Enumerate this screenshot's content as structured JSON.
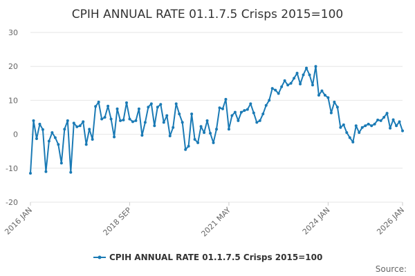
{
  "chart_data": {
    "type": "line",
    "title": "CPIH ANNUAL RATE 01.1.7.5 Crisps 2015=100",
    "xlabel": "",
    "ylabel": "",
    "ylim": [
      -20,
      30
    ],
    "yticks": [
      -20,
      -10,
      0,
      10,
      20,
      30
    ],
    "grid": true,
    "legend_position": "bottom-center",
    "xticks": [
      {
        "label": "2016 JAN",
        "index": 0
      },
      {
        "label": "2018 SEP",
        "index": 32
      },
      {
        "label": "2021 MAY",
        "index": 64
      },
      {
        "label": "2024 JAN",
        "index": 96
      },
      {
        "label": "2026 JAN",
        "index": 120
      }
    ],
    "series": [
      {
        "name": "CPIH ANNUAL RATE 01.1.7.5 Crisps 2015=100",
        "color": "#1a7ab5",
        "values": [
          -11.5,
          4.0,
          -1.3,
          3.0,
          1.4,
          -11.0,
          -2.0,
          0.5,
          -1.0,
          -3.0,
          -8.5,
          1.5,
          4.0,
          -11.2,
          3.3,
          2.2,
          2.5,
          3.7,
          -3.0,
          1.5,
          -1.5,
          8.2,
          9.5,
          4.5,
          5.0,
          8.3,
          4.5,
          -0.8,
          7.5,
          4.0,
          4.2,
          9.3,
          4.5,
          3.7,
          4.0,
          7.5,
          -0.3,
          3.5,
          8.0,
          9.0,
          2.5,
          8.0,
          8.8,
          3.5,
          5.5,
          -0.5,
          2.0,
          9.0,
          6.0,
          3.5,
          -4.5,
          -3.5,
          6.0,
          -1.5,
          -2.5,
          2.3,
          0.5,
          4.0,
          0.3,
          -2.5,
          1.5,
          7.8,
          7.5,
          10.3,
          1.5,
          5.5,
          6.5,
          4.0,
          6.5,
          7.0,
          7.3,
          9.0,
          6.3,
          3.5,
          4.0,
          6.0,
          8.5,
          10.0,
          13.5,
          13.0,
          12.0,
          14.0,
          15.8,
          14.5,
          15.0,
          16.5,
          18.0,
          14.8,
          17.5,
          19.5,
          17.5,
          14.5,
          20.0,
          11.5,
          12.8,
          11.5,
          10.8,
          6.3,
          9.5,
          8.0,
          2.0,
          2.8,
          0.5,
          -1.0,
          -2.3,
          2.5,
          0.5,
          2.0,
          2.5,
          3.0,
          2.5,
          3.0,
          4.2,
          4.0,
          5.0,
          6.2,
          1.8,
          4.3,
          2.5,
          3.7,
          1.0
        ]
      }
    ]
  },
  "footer": {
    "source_label": "Source:"
  }
}
